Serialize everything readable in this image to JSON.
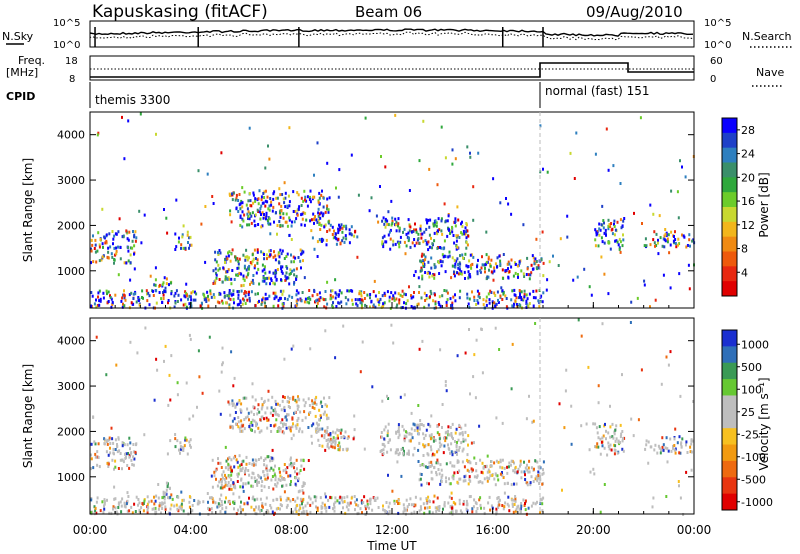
{
  "header": {
    "station": "Kapuskasing (fitACF)",
    "beam": "Beam 06",
    "date": "09/Aug/2010"
  },
  "top_panels": {
    "nsky_label": "N.Sky",
    "nsearch_label": "N.Search",
    "noise_ticks": [
      "10^5",
      "10^0"
    ],
    "freq_label": "Freq.",
    "freq_unit": "[MHz]",
    "freq_ticks": [
      "18",
      "8"
    ],
    "nave_label": "Nave",
    "nave_ticks": [
      "60",
      "0"
    ],
    "cpid_label": "CPID",
    "cpid_modes": [
      {
        "label": "themis 3300",
        "start_hour": 0,
        "end_hour": 18
      },
      {
        "label": "normal (fast) 151",
        "start_hour": 18,
        "end_hour": 24
      }
    ]
  },
  "chart_data": [
    {
      "type": "heatmap",
      "title": "",
      "parameter": "Power",
      "xlabel": "",
      "ylabel": "Slant Range [km]",
      "xlim_hours": [
        0,
        24
      ],
      "ylim": [
        180,
        4500
      ],
      "yticks": [
        1000,
        2000,
        3000,
        4000
      ],
      "ytick_labels": [
        "1000",
        "2000",
        "3000",
        "4000"
      ],
      "colorbar": {
        "label": "Power [dB]",
        "ticks": [
          "4",
          "8",
          "12",
          "16",
          "20",
          "24",
          "28"
        ],
        "colors": [
          "#0a00ff",
          "#1e40c8",
          "#2e7fbf",
          "#3a8f6a",
          "#2fa83c",
          "#6ccc2a",
          "#c8d830",
          "#f2b61b",
          "#f08a12",
          "#ee5a0c",
          "#e82810",
          "#e00000"
        ]
      },
      "scatter_echo_bands": [
        {
          "t_start": 0.0,
          "t_end": 1.8,
          "r_low": 1200,
          "r_high": 1900
        },
        {
          "t_start": 2.5,
          "t_end": 3.2,
          "r_low": 550,
          "r_high": 900
        },
        {
          "t_start": 3.3,
          "t_end": 4.0,
          "r_low": 1500,
          "r_high": 1900
        },
        {
          "t_start": 4.8,
          "t_end": 8.5,
          "r_low": 700,
          "r_high": 1500
        },
        {
          "t_start": 5.5,
          "t_end": 9.5,
          "r_low": 2000,
          "r_high": 2800
        },
        {
          "t_start": 9.0,
          "t_end": 10.5,
          "r_low": 1600,
          "r_high": 2100
        },
        {
          "t_start": 11.5,
          "t_end": 15.0,
          "r_low": 1500,
          "r_high": 2200
        },
        {
          "t_start": 13.0,
          "t_end": 18.0,
          "r_low": 850,
          "r_high": 1400
        },
        {
          "t_start": 0.0,
          "t_end": 18.0,
          "r_low": 200,
          "r_high": 600
        },
        {
          "t_start": 20.0,
          "t_end": 21.2,
          "r_low": 1500,
          "r_high": 2200
        },
        {
          "t_start": 22.0,
          "t_end": 24.0,
          "r_low": 1550,
          "r_high": 1900
        }
      ]
    },
    {
      "type": "heatmap",
      "title": "",
      "parameter": "Velocity",
      "xlabel": "Time UT",
      "ylabel": "Slant Range [km]",
      "xlim_hours": [
        0,
        24
      ],
      "xticks": [
        0,
        4,
        8,
        12,
        16,
        20,
        24
      ],
      "xtick_labels": [
        "00:00",
        "04:00",
        "08:00",
        "12:00",
        "16:00",
        "20:00",
        "00:00"
      ],
      "ylim": [
        180,
        4500
      ],
      "yticks": [
        1000,
        2000,
        3000,
        4000
      ],
      "ytick_labels": [
        "1000",
        "2000",
        "3000",
        "4000"
      ],
      "colorbar": {
        "label": "Velocity [m s⁻¹]",
        "ticks": [
          "1000",
          "500",
          "100",
          "25",
          "-25",
          "-100",
          "-500",
          "-1000"
        ],
        "colors": [
          "#1a2fd0",
          "#2f6fb8",
          "#3a9a55",
          "#66c832",
          "#bebebe",
          "#bebebe",
          "#f7c020",
          "#f29a10",
          "#ee6a10",
          "#e83510",
          "#e00000"
        ]
      }
    }
  ]
}
